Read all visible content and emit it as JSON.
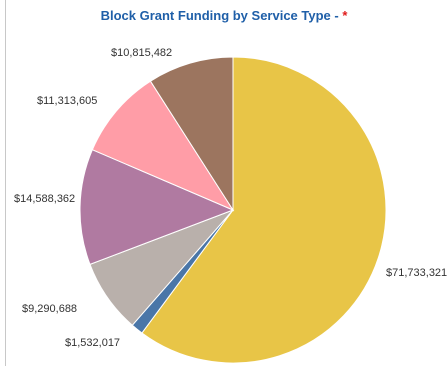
{
  "title": {
    "text": "Block Grant Funding by Service Type - ",
    "marker": "*"
  },
  "chart_data": {
    "type": "pie",
    "title": "Block Grant Funding by Service Type - *",
    "slices": [
      {
        "label": "$71,733,321",
        "value": 71733321,
        "color": "#e8c547"
      },
      {
        "label": "$1,532,017",
        "value": 1532017,
        "color": "#4a76a8"
      },
      {
        "label": "$9,290,688",
        "value": 9290688,
        "color": "#b9b0ab"
      },
      {
        "label": "$14,588,362",
        "value": 14588362,
        "color": "#b07aa1"
      },
      {
        "label": "$11,313,605",
        "value": 11313605,
        "color": "#ff9da7"
      },
      {
        "label": "$10,815,482",
        "value": 10815482,
        "color": "#9c755f"
      }
    ],
    "start": "12 o'clock, clockwise",
    "legend": "none"
  }
}
